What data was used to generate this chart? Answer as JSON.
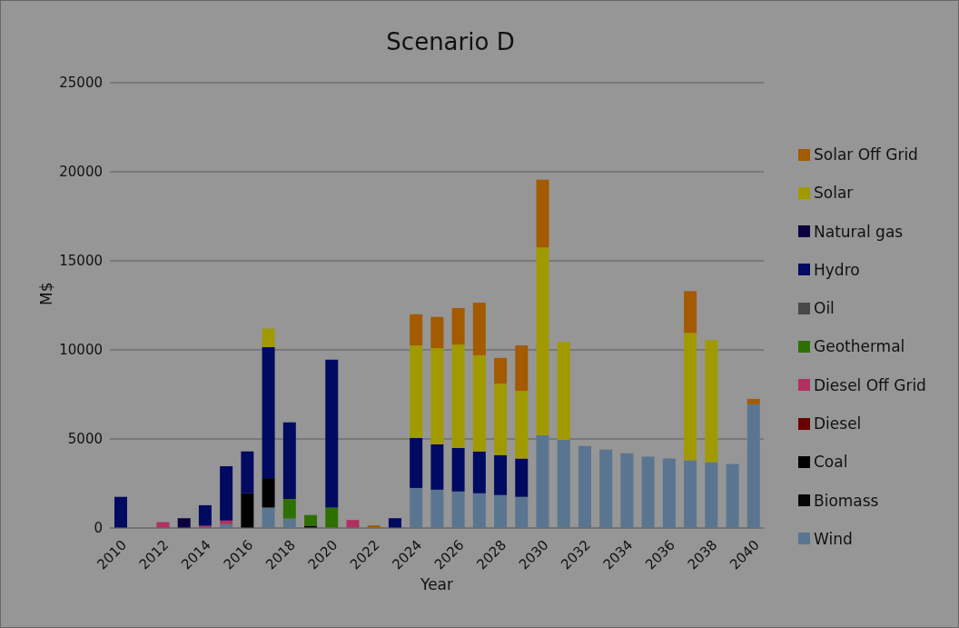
{
  "chart_data": {
    "type": "bar",
    "title": "Scenario D",
    "xlabel": "Year",
    "ylabel": "M$",
    "categories": [
      "2010",
      null,
      "2012",
      null,
      "2014",
      null,
      "2016",
      null,
      "2018",
      null,
      "2020",
      null,
      "2022",
      null,
      "2024",
      null,
      "2026",
      null,
      "2028",
      null,
      "2030",
      null,
      "2032",
      null,
      "2034",
      null,
      "2036",
      null,
      "2038",
      null,
      "2040"
    ],
    "stacked": true,
    "ylim": [
      0,
      25000
    ],
    "yticks": [
      0,
      5000,
      10000,
      15000,
      20000,
      25000
    ],
    "grid": "y",
    "legend": "right",
    "series": [
      {
        "name": "Wind",
        "color": "#5a7590",
        "values": [
          null,
          null,
          null,
          null,
          null,
          220,
          null,
          1150,
          530,
          null,
          null,
          null,
          null,
          null,
          2250,
          2150,
          2050,
          1950,
          1850,
          1750,
          5200,
          4950,
          4600,
          4400,
          4200,
          4000,
          3900,
          3800,
          3700,
          3600,
          6950
        ]
      },
      {
        "name": "Biomass",
        "color": "#050505",
        "values": [
          null,
          null,
          null,
          null,
          null,
          null,
          null,
          null,
          null,
          130,
          null,
          null,
          null,
          null,
          null,
          null,
          null,
          null,
          null,
          null,
          null,
          null,
          null,
          null,
          null,
          null,
          null,
          null,
          null,
          null,
          null
        ]
      },
      {
        "name": "Coal",
        "color": "#000000",
        "values": [
          null,
          null,
          null,
          null,
          null,
          null,
          1950,
          1650,
          null,
          null,
          null,
          null,
          null,
          null,
          null,
          null,
          null,
          null,
          null,
          null,
          null,
          null,
          null,
          null,
          null,
          null,
          null,
          null,
          null,
          null,
          null
        ]
      },
      {
        "name": "Diesel",
        "color": "#6a0000",
        "values": [
          null,
          null,
          null,
          null,
          null,
          null,
          null,
          null,
          null,
          null,
          null,
          null,
          null,
          null,
          null,
          null,
          null,
          null,
          null,
          null,
          null,
          null,
          null,
          null,
          null,
          null,
          null,
          null,
          null,
          null,
          null
        ]
      },
      {
        "name": "Diesel Off Grid",
        "color": "#b03060",
        "values": [
          null,
          null,
          330,
          null,
          130,
          200,
          null,
          null,
          null,
          null,
          null,
          450,
          null,
          null,
          null,
          null,
          null,
          null,
          null,
          null,
          null,
          null,
          null,
          null,
          null,
          null,
          null,
          null,
          null,
          null,
          null
        ]
      },
      {
        "name": "Geothermal",
        "color": "#2e7000",
        "values": [
          null,
          null,
          null,
          null,
          null,
          null,
          null,
          null,
          1100,
          600,
          1150,
          null,
          null,
          null,
          null,
          null,
          null,
          null,
          null,
          null,
          null,
          null,
          null,
          null,
          null,
          null,
          null,
          null,
          null,
          null,
          null
        ]
      },
      {
        "name": "Oil",
        "color": "#4a4848",
        "values": [
          null,
          null,
          null,
          null,
          null,
          null,
          null,
          null,
          null,
          null,
          null,
          null,
          null,
          null,
          null,
          null,
          null,
          null,
          null,
          null,
          null,
          null,
          null,
          null,
          null,
          null,
          null,
          null,
          null,
          null,
          null
        ]
      },
      {
        "name": "Hydro",
        "color": "#000a60",
        "values": [
          1750,
          null,
          null,
          null,
          1150,
          3050,
          2350,
          7350,
          4300,
          null,
          8300,
          null,
          null,
          550,
          2800,
          2550,
          2450,
          2350,
          2250,
          2150,
          null,
          null,
          null,
          null,
          null,
          null,
          null,
          null,
          null,
          null,
          null
        ]
      },
      {
        "name": "Natural gas",
        "color": "#0a0040",
        "values": [
          null,
          null,
          null,
          550,
          null,
          null,
          null,
          null,
          null,
          null,
          null,
          null,
          null,
          null,
          null,
          null,
          null,
          null,
          null,
          null,
          null,
          null,
          null,
          null,
          null,
          null,
          null,
          null,
          null,
          null,
          null
        ]
      },
      {
        "name": "Solar",
        "color": "#a09a00",
        "values": [
          null,
          null,
          null,
          null,
          null,
          null,
          null,
          1050,
          null,
          null,
          null,
          null,
          null,
          null,
          5200,
          5400,
          5800,
          5400,
          4000,
          3800,
          10550,
          5500,
          null,
          null,
          null,
          null,
          null,
          7150,
          6850,
          null,
          null
        ]
      },
      {
        "name": "Solar Off Grid",
        "color": "#a35a00",
        "values": [
          null,
          null,
          null,
          null,
          null,
          null,
          null,
          null,
          null,
          null,
          null,
          null,
          150,
          null,
          1750,
          1750,
          2050,
          2950,
          1450,
          2550,
          3800,
          null,
          null,
          null,
          null,
          null,
          null,
          2350,
          null,
          null,
          300
        ]
      }
    ]
  }
}
